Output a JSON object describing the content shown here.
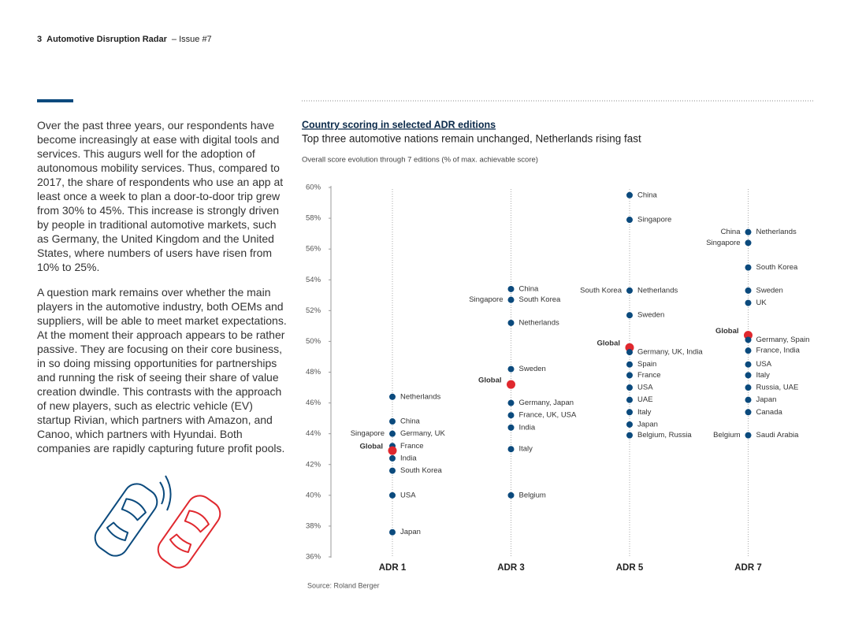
{
  "header": {
    "page": "3",
    "title": "Automotive Disruption Radar",
    "issue": "– Issue #7"
  },
  "paragraphs": [
    "Over the past three years, our respondents have become increasingly at ease with digital tools and services. This augurs well for the adoption of autonomous mobility services. Thus, compared to 2017, the share of respondents who use an app at least once a week to plan a door-to-door trip grew from 30% to 45%. This increase is strongly driven by people in traditional automotive markets, such as Germany, the United Kingdom and the United States, where numbers of users have risen from 10% to 25%.",
    "A question mark remains over whether the main players in the automotive industry, both OEMs and suppliers, will be able to meet market expectations. At the moment their approach appears to be rather passive. They are focusing on their core business, in so doing missing opportunities for partnerships and running the risk of seeing their share of value creation dwindle. This contrasts with the approach of new players, such as electric vehicle (EV) startup Rivian, which partners with Amazon, and Canoo, which partners with Hyundai. Both companies are rapidly capturing future profit pools."
  ],
  "chart_data": {
    "type": "dot",
    "title": "Country scoring in selected ADR editions",
    "subtitle": "Top three automotive nations remain unchanged, Netherlands rising fast",
    "note": "Overall score evolution through 7 editions (% of max. achievable score)",
    "source": "Source: Roland Berger",
    "color": "#0b4a7d",
    "highlight_color": "#e0282e",
    "ylim": [
      36,
      60
    ],
    "yticks": [
      {
        "value": 36,
        "label": "36%"
      },
      {
        "value": 38,
        "label": "38%"
      },
      {
        "value": 40,
        "label": "40%"
      },
      {
        "value": 42,
        "label": "42%"
      },
      {
        "value": 44,
        "label": "44%"
      },
      {
        "value": 46,
        "label": "46%"
      },
      {
        "value": 48,
        "label": "48%"
      },
      {
        "value": 50,
        "label": "50%"
      },
      {
        "value": 52,
        "label": "52%"
      },
      {
        "value": 54,
        "label": "54%"
      },
      {
        "value": 56,
        "label": "56%"
      },
      {
        "value": 58,
        "label": "58%"
      },
      {
        "value": 60,
        "label": "60%"
      }
    ],
    "series": [
      {
        "name": "ADR 1",
        "points": [
          {
            "value": 46.4,
            "label": "Netherlands"
          },
          {
            "value": 44.8,
            "label": "China"
          },
          {
            "value": 44.0,
            "label": "Germany, UK",
            "left_label": "Singapore"
          },
          {
            "value": 43.2,
            "label": "France"
          },
          {
            "value": 42.9,
            "left_label": "Global",
            "highlight": true
          },
          {
            "value": 42.4,
            "label": "India"
          },
          {
            "value": 41.6,
            "label": "South Korea"
          },
          {
            "value": 40.0,
            "label": "USA"
          },
          {
            "value": 37.6,
            "label": "Japan"
          }
        ]
      },
      {
        "name": "ADR 3",
        "points": [
          {
            "value": 53.4,
            "label": "China"
          },
          {
            "value": 52.7,
            "label": "South Korea",
            "left_label": "Singapore"
          },
          {
            "value": 51.2,
            "label": "Netherlands"
          },
          {
            "value": 48.2,
            "label": "Sweden"
          },
          {
            "value": 47.2,
            "left_label": "Global",
            "highlight": true
          },
          {
            "value": 46.0,
            "label": "Germany, Japan"
          },
          {
            "value": 45.2,
            "label": "France, UK, USA"
          },
          {
            "value": 44.4,
            "label": "India"
          },
          {
            "value": 43.0,
            "label": "Italy"
          },
          {
            "value": 40.0,
            "label": "Belgium"
          }
        ]
      },
      {
        "name": "ADR 5",
        "points": [
          {
            "value": 59.5,
            "label": "China"
          },
          {
            "value": 57.9,
            "label": "Singapore"
          },
          {
            "value": 53.3,
            "label": "Netherlands",
            "left_label": "South Korea"
          },
          {
            "value": 51.7,
            "label": "Sweden"
          },
          {
            "value": 49.6,
            "left_label": "Global",
            "highlight": true
          },
          {
            "value": 49.3,
            "label": "Germany, UK, India"
          },
          {
            "value": 48.5,
            "label": "Spain"
          },
          {
            "value": 47.8,
            "label": "France"
          },
          {
            "value": 47.0,
            "label": "USA"
          },
          {
            "value": 46.2,
            "label": "UAE"
          },
          {
            "value": 45.4,
            "label": "Italy"
          },
          {
            "value": 44.6,
            "label": "Japan"
          },
          {
            "value": 43.9,
            "label": "Belgium, Russia"
          }
        ]
      },
      {
        "name": "ADR 7",
        "points": [
          {
            "value": 57.1,
            "label": "Netherlands",
            "left_label": "China"
          },
          {
            "value": 56.4,
            "left_label": "Singapore"
          },
          {
            "value": 54.8,
            "label": "South Korea"
          },
          {
            "value": 53.3,
            "label": "Sweden"
          },
          {
            "value": 52.5,
            "label": "UK"
          },
          {
            "value": 50.4,
            "left_label": "Global",
            "highlight": true
          },
          {
            "value": 50.1,
            "label": "Germany, Spain"
          },
          {
            "value": 49.4,
            "label": "France, India"
          },
          {
            "value": 48.5,
            "label": "USA"
          },
          {
            "value": 47.8,
            "label": "Italy"
          },
          {
            "value": 47.0,
            "label": "Russia, UAE"
          },
          {
            "value": 46.2,
            "label": "Japan"
          },
          {
            "value": 45.4,
            "label": "Canada"
          },
          {
            "value": 43.9,
            "label": "Saudi Arabia",
            "left_label": "Belgium"
          }
        ]
      }
    ]
  }
}
